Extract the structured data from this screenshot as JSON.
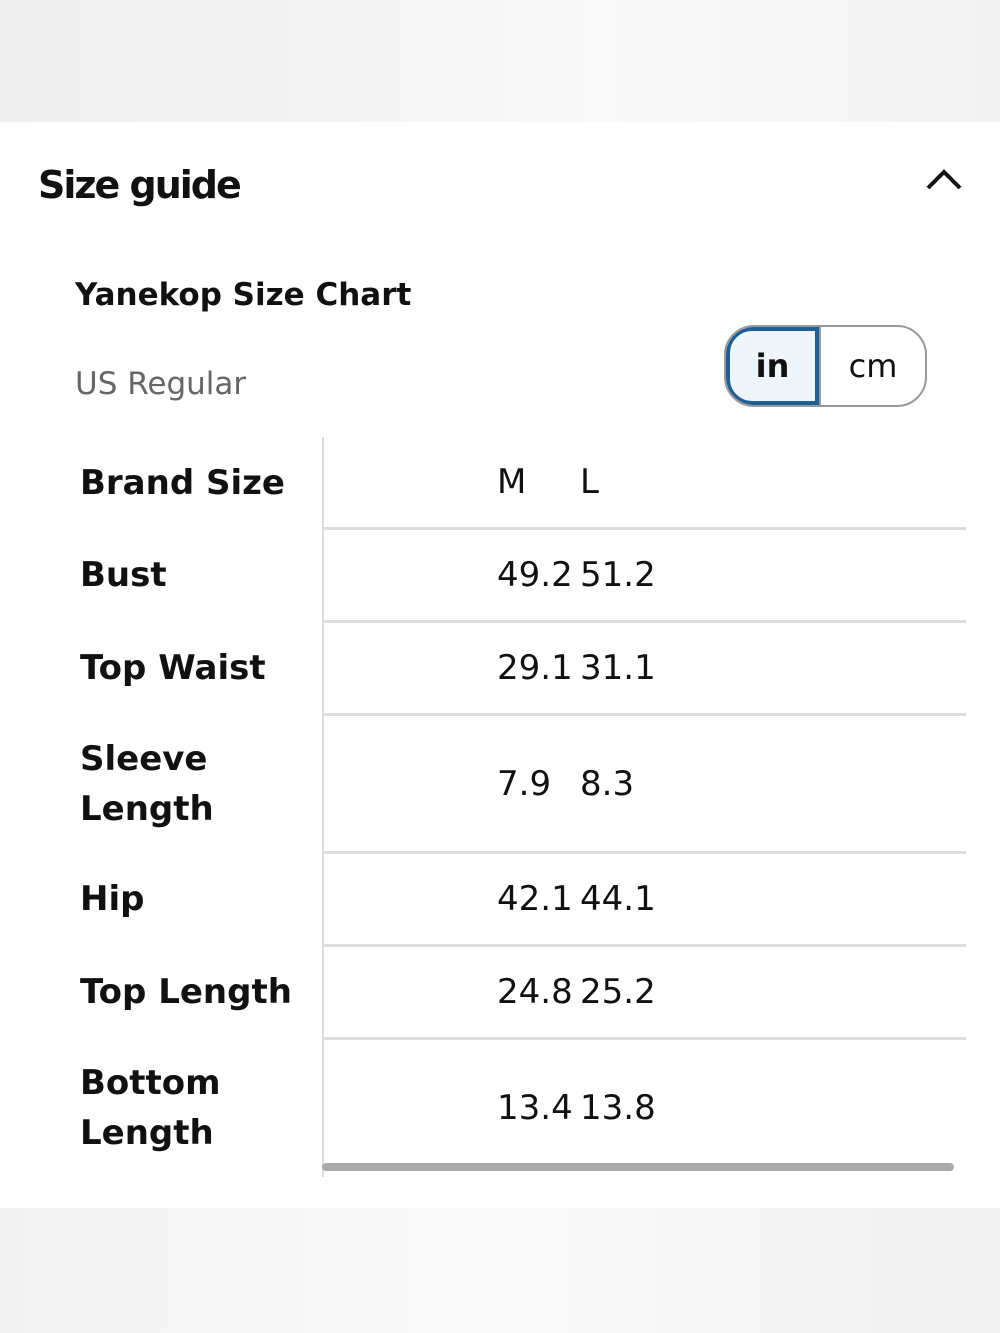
{
  "header": {
    "title": "Size guide"
  },
  "chart_info": {
    "title": "Yanekop Size Chart",
    "subtitle": "US Regular"
  },
  "unit_toggle": {
    "options": [
      "in",
      "cm"
    ],
    "selected": "in"
  },
  "table": {
    "header": [
      "Brand Size",
      "M",
      "L"
    ],
    "rows": [
      [
        "Bust",
        "49.2",
        "51.2"
      ],
      [
        "Top Waist",
        "29.1",
        "31.1"
      ],
      [
        "Sleeve Length",
        "7.9",
        "8.3"
      ],
      [
        "Hip",
        "42.1",
        "44.1"
      ],
      [
        "Top Length",
        "24.8",
        "25.2"
      ],
      [
        "Bottom Length",
        "13.4",
        "13.8"
      ]
    ]
  }
}
